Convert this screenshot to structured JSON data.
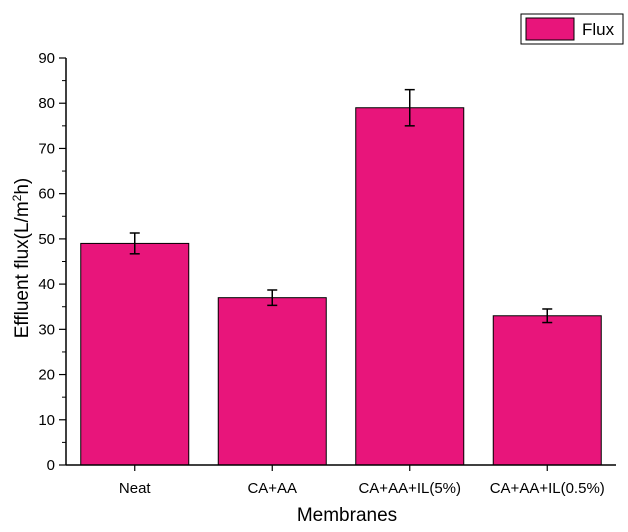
{
  "chart_data": {
    "type": "bar",
    "categories": [
      "Neat",
      "CA+AA",
      "CA+AA+IL(5%)",
      "CA+AA+IL(0.5%)"
    ],
    "series": [
      {
        "name": "Flux",
        "values": [
          49,
          37,
          79,
          33
        ],
        "error": [
          2.3,
          1.7,
          4.0,
          1.5
        ],
        "color": "#e8157b"
      }
    ],
    "xlabel": "Membranes",
    "ylabel": "Effluent flux(L/m",
    "ylabel_sup": "2",
    "ylabel_end": "h)",
    "ylim": [
      0,
      90
    ],
    "yticks": [
      0,
      10,
      20,
      30,
      40,
      50,
      60,
      70,
      80,
      90
    ],
    "grid": false,
    "legend": "top-right"
  }
}
